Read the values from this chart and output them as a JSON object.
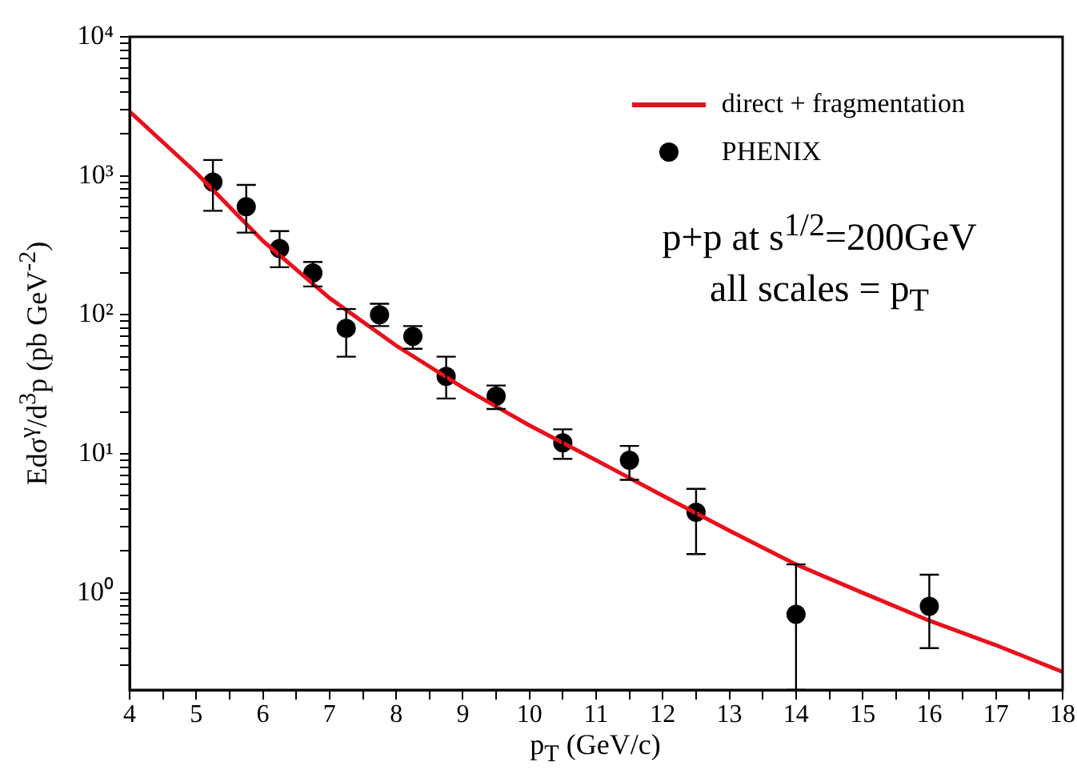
{
  "chart_data": {
    "type": "scatter",
    "xlabel": "p$_{T}$ (GeV/c)",
    "ylabel": "Edσ$^{γ}$/d$^{3}$p (pb GeV$^{-2}$)",
    "xlim": [
      4,
      18
    ],
    "ylim": [
      0.2,
      10000
    ],
    "log": "y",
    "grid": false,
    "legend": "top right",
    "xticks": [
      4,
      {
        "value": 4.5,
        "label": null
      },
      5,
      {
        "value": 5.5,
        "label": null
      },
      6,
      {
        "value": 6.5,
        "label": null
      },
      7,
      {
        "value": 7.5,
        "label": null
      },
      8,
      {
        "value": 8.5,
        "label": null
      },
      9,
      {
        "value": 9.5,
        "label": null
      },
      10,
      {
        "value": 10.5,
        "label": null
      },
      11,
      {
        "value": 11.5,
        "label": null
      },
      12,
      {
        "value": 12.5,
        "label": null
      },
      13,
      {
        "value": 13.5,
        "label": null
      },
      14,
      {
        "value": 14.5,
        "label": null
      },
      15,
      {
        "value": 15.5,
        "label": null
      },
      16,
      {
        "value": 16.5,
        "label": null
      },
      17,
      {
        "value": 17.5,
        "label": null
      },
      18
    ],
    "yticks": [
      {
        "value": 0.3,
        "label": null
      },
      {
        "value": 0.4,
        "label": null
      },
      {
        "value": 0.5,
        "label": null
      },
      {
        "value": 0.6,
        "label": null
      },
      {
        "value": 0.7,
        "label": null
      },
      {
        "value": 0.8,
        "label": null
      },
      {
        "value": 0.9,
        "label": null
      },
      {
        "value": 1,
        "label": "10⁰"
      },
      {
        "value": 2,
        "label": null
      },
      {
        "value": 3,
        "label": null
      },
      {
        "value": 4,
        "label": null
      },
      {
        "value": 5,
        "label": null
      },
      {
        "value": 6,
        "label": null
      },
      {
        "value": 7,
        "label": null
      },
      {
        "value": 8,
        "label": null
      },
      {
        "value": 9,
        "label": null
      },
      {
        "value": 10,
        "label": "10¹"
      },
      {
        "value": 20,
        "label": null
      },
      {
        "value": 30,
        "label": null
      },
      {
        "value": 40,
        "label": null
      },
      {
        "value": 50,
        "label": null
      },
      {
        "value": 60,
        "label": null
      },
      {
        "value": 70,
        "label": null
      },
      {
        "value": 80,
        "label": null
      },
      {
        "value": 90,
        "label": null
      },
      {
        "value": 100,
        "label": "10²"
      },
      {
        "value": 200,
        "label": null
      },
      {
        "value": 300,
        "label": null
      },
      {
        "value": 400,
        "label": null
      },
      {
        "value": 500,
        "label": null
      },
      {
        "value": 600,
        "label": null
      },
      {
        "value": 700,
        "label": null
      },
      {
        "value": 800,
        "label": null
      },
      {
        "value": 900,
        "label": null
      },
      {
        "value": 1000,
        "label": "10³"
      },
      {
        "value": 2000,
        "label": null
      },
      {
        "value": 3000,
        "label": null
      },
      {
        "value": 4000,
        "label": null
      },
      {
        "value": 5000,
        "label": null
      },
      {
        "value": 6000,
        "label": null
      },
      {
        "value": 7000,
        "label": null
      },
      {
        "value": 8000,
        "label": null
      },
      {
        "value": 9000,
        "label": null
      },
      {
        "value": 10000,
        "label": "10⁴"
      }
    ],
    "annotations": [
      "p+p at s$^{1/2}$=200GeV",
      "all scales = p$_{T}$"
    ],
    "series": [
      {
        "name": "direct + fragmentation",
        "type": "line",
        "color": "#e8101c",
        "x": [
          4,
          5,
          6,
          7,
          8,
          9,
          10,
          11,
          12,
          13,
          14,
          15,
          16,
          17,
          18
        ],
        "values": [
          2900,
          1050,
          340,
          132,
          60,
          30,
          16,
          9,
          5,
          2.8,
          1.6,
          1.0,
          0.63,
          0.42,
          0.27
        ]
      },
      {
        "name": "PHENIX",
        "type": "scatter",
        "color": "#000000",
        "marker": "circle",
        "x": [
          5.25,
          5.75,
          6.25,
          6.75,
          7.25,
          7.75,
          8.25,
          8.75,
          9.5,
          10.5,
          11.5,
          12.5,
          14,
          16
        ],
        "values": [
          900,
          600,
          300,
          200,
          80,
          100,
          70,
          36,
          26,
          12,
          9,
          3.8,
          0.7,
          0.8
        ],
        "errors": [
          [
            560,
            1300
          ],
          [
            390,
            860
          ],
          [
            220,
            400
          ],
          [
            160,
            240
          ],
          [
            50,
            110
          ],
          [
            83,
            120
          ],
          [
            57,
            83
          ],
          [
            25,
            50
          ],
          [
            21,
            31
          ],
          [
            9.2,
            15
          ],
          [
            6.5,
            11.4
          ],
          [
            1.9,
            5.6
          ],
          [
            0.2,
            1.6
          ],
          [
            0.4,
            1.35
          ]
        ]
      }
    ]
  }
}
